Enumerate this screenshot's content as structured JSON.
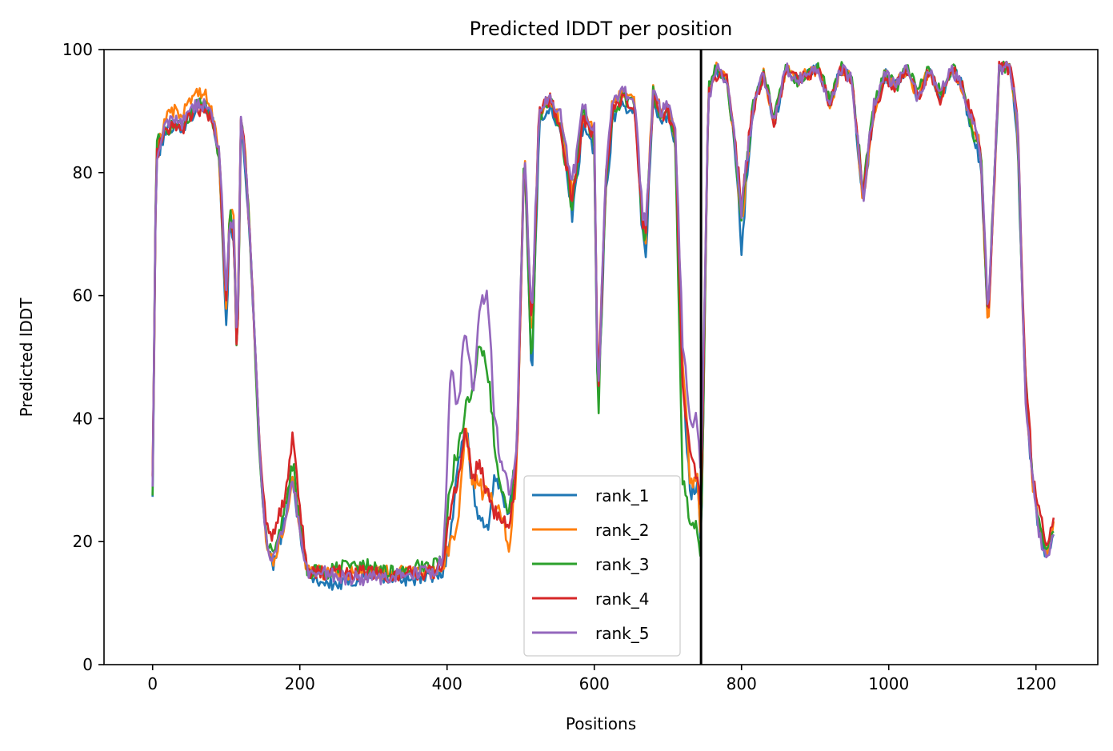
{
  "chart_data": {
    "type": "line",
    "title": "Predicted lDDT per position",
    "xlabel": "Positions",
    "ylabel": "Predicted lDDT",
    "xlim": [
      -66,
      1284
    ],
    "ylim": [
      0,
      100
    ],
    "xticks": [
      0,
      200,
      400,
      600,
      800,
      1000,
      1200
    ],
    "yticks": [
      0,
      20,
      40,
      60,
      80,
      100
    ],
    "grid": false,
    "legend_position": "lower-center",
    "chain_break_x": 745,
    "series_anchor_x": [
      0,
      5,
      10,
      20,
      30,
      40,
      50,
      60,
      70,
      80,
      90,
      100,
      105,
      110,
      115,
      120,
      125,
      135,
      145,
      155,
      165,
      180,
      190,
      200,
      210,
      220,
      240,
      260,
      280,
      300,
      320,
      340,
      360,
      380,
      395,
      405,
      415,
      425,
      435,
      445,
      455,
      465,
      475,
      485,
      495,
      505,
      515,
      525,
      540,
      555,
      570,
      585,
      595,
      600,
      605,
      615,
      625,
      640,
      655,
      665,
      670,
      680,
      690,
      700,
      710,
      720,
      730,
      740,
      745,
      755,
      765,
      780,
      790,
      800,
      815,
      830,
      845,
      860,
      875,
      890,
      905,
      920,
      935,
      950,
      965,
      980,
      995,
      1010,
      1025,
      1040,
      1055,
      1070,
      1085,
      1100,
      1115,
      1125,
      1135,
      1150,
      1165,
      1175,
      1185,
      1195,
      1205,
      1215,
      1225
    ],
    "series": [
      {
        "name": "rank_1",
        "color": "#1f77b4",
        "values": [
          28,
          82,
          84,
          87,
          88,
          87,
          89,
          90,
          91,
          89,
          84,
          55,
          72,
          70,
          48,
          88,
          83,
          62,
          35,
          19,
          16,
          24,
          30,
          22,
          15,
          14,
          13,
          13,
          14,
          15,
          14,
          14,
          14,
          14,
          15,
          22,
          32,
          40,
          28,
          24,
          22,
          30,
          28,
          25,
          35,
          84,
          45,
          88,
          91,
          86,
          73,
          88,
          85,
          84,
          40,
          75,
          89,
          91,
          90,
          70,
          67,
          92,
          88,
          89,
          85,
          48,
          28,
          30,
          18,
          93,
          97,
          95,
          85,
          68,
          90,
          96,
          88,
          97,
          95,
          96,
          97,
          91,
          97,
          95,
          75,
          90,
          96,
          94,
          97,
          92,
          97,
          92,
          97,
          94,
          85,
          82,
          55,
          97,
          97,
          86,
          45,
          30,
          21,
          17,
          22
        ]
      },
      {
        "name": "rank_2",
        "color": "#ff7f0e",
        "values": [
          30,
          82,
          86,
          89,
          90,
          89,
          92,
          93,
          93,
          90,
          84,
          58,
          76,
          72,
          50,
          88,
          84,
          64,
          36,
          19,
          17,
          23,
          31,
          22,
          15,
          15,
          15,
          15,
          15,
          15,
          15,
          15,
          15,
          15,
          16,
          20,
          22,
          38,
          30,
          29,
          27,
          26,
          24,
          19,
          32,
          84,
          50,
          90,
          92,
          88,
          76,
          90,
          88,
          86,
          42,
          78,
          92,
          93,
          92,
          72,
          70,
          94,
          90,
          91,
          86,
          50,
          30,
          30,
          20,
          93,
          97,
          95,
          85,
          72,
          90,
          96,
          88,
          97,
          95,
          96,
          97,
          91,
          97,
          95,
          76,
          90,
          96,
          94,
          97,
          92,
          97,
          92,
          97,
          94,
          87,
          84,
          54,
          97,
          97,
          87,
          46,
          30,
          22,
          18,
          24
        ]
      },
      {
        "name": "rank_3",
        "color": "#2ca02c",
        "values": [
          29,
          84,
          86,
          87,
          88,
          87,
          89,
          91,
          91,
          89,
          83,
          60,
          74,
          70,
          47,
          88,
          84,
          63,
          34,
          20,
          17,
          25,
          33,
          23,
          15,
          15,
          15,
          16,
          16,
          16,
          15,
          15,
          16,
          16,
          17,
          30,
          35,
          42,
          46,
          52,
          48,
          36,
          27,
          24,
          36,
          84,
          48,
          89,
          92,
          87,
          74,
          90,
          86,
          85,
          38,
          76,
          90,
          92,
          91,
          72,
          69,
          93,
          89,
          90,
          85,
          30,
          24,
          22,
          18,
          94,
          97,
          95,
          86,
          72,
          91,
          96,
          89,
          97,
          95,
          96,
          97,
          92,
          97,
          96,
          77,
          91,
          96,
          94,
          97,
          93,
          97,
          93,
          97,
          95,
          86,
          83,
          56,
          97,
          97,
          88,
          47,
          32,
          22,
          18,
          22
        ]
      },
      {
        "name": "rank_4",
        "color": "#d62728",
        "values": [
          31,
          82,
          85,
          87,
          88,
          87,
          89,
          90,
          90,
          89,
          84,
          60,
          72,
          70,
          49,
          88,
          84,
          64,
          36,
          22,
          21,
          28,
          37,
          26,
          15,
          15,
          15,
          15,
          15,
          15,
          14,
          15,
          15,
          15,
          16,
          26,
          30,
          38,
          30,
          33,
          28,
          25,
          24,
          22,
          34,
          84,
          54,
          90,
          92,
          87,
          75,
          89,
          87,
          86,
          42,
          77,
          90,
          92,
          91,
          72,
          70,
          92,
          89,
          90,
          86,
          46,
          34,
          30,
          24,
          93,
          96,
          95,
          86,
          75,
          90,
          96,
          88,
          97,
          95,
          96,
          97,
          91,
          97,
          95,
          77,
          90,
          95,
          94,
          97,
          92,
          97,
          92,
          97,
          94,
          88,
          84,
          56,
          97,
          97,
          90,
          48,
          32,
          24,
          20,
          24
        ]
      },
      {
        "name": "rank_5",
        "color": "#9467bd",
        "values": [
          28,
          83,
          85,
          88,
          89,
          88,
          90,
          91,
          91,
          89,
          84,
          62,
          74,
          71,
          50,
          88,
          84,
          64,
          35,
          19,
          17,
          23,
          30,
          22,
          15,
          15,
          15,
          14,
          14,
          14,
          14,
          15,
          15,
          15,
          17,
          48,
          42,
          55,
          44,
          58,
          60,
          40,
          32,
          28,
          36,
          84,
          56,
          90,
          93,
          89,
          78,
          91,
          88,
          87,
          42,
          78,
          92,
          93,
          92,
          74,
          72,
          93,
          90,
          91,
          87,
          52,
          40,
          40,
          30,
          92,
          97,
          95,
          86,
          74,
          90,
          96,
          88,
          97,
          95,
          96,
          97,
          91,
          97,
          95,
          76,
          91,
          96,
          94,
          97,
          92,
          97,
          93,
          97,
          94,
          88,
          84,
          56,
          97,
          97,
          89,
          45,
          30,
          21,
          17,
          21
        ]
      }
    ]
  }
}
